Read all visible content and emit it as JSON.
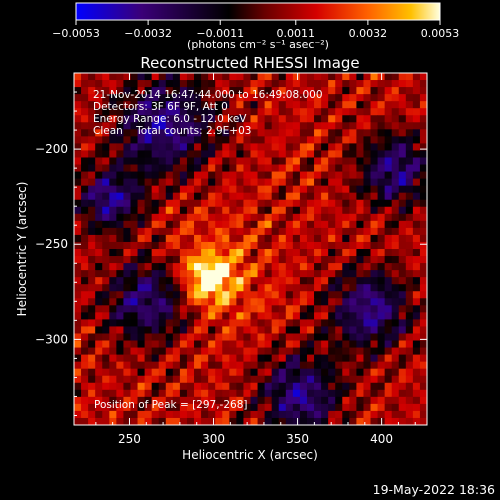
{
  "chart_data": {
    "type": "heatmap",
    "title": "Reconstructed RHESSI Image",
    "xlabel": "Heliocentric X (arcsec)",
    "ylabel": "Heliocentric Y (arcsec)",
    "xlim": [
      217,
      427
    ],
    "ylim": [
      -345,
      -160
    ],
    "x_ticks": [
      250,
      300,
      350,
      400
    ],
    "y_ticks": [
      -200,
      -250,
      -300
    ],
    "x_tick_labels": [
      "250",
      "300",
      "350",
      "400"
    ],
    "y_tick_labels": [
      "−200",
      "−250",
      "−300"
    ],
    "colorbar": {
      "min": -0.0053,
      "max": 0.0053,
      "tick_values": [
        -0.0053,
        -0.0032,
        -0.0011,
        0.0011,
        0.0032,
        0.0053
      ],
      "tick_labels": [
        "−0.0053",
        "−0.0032",
        "−0.0011",
        "0.0011",
        "0.0032",
        "0.0053"
      ],
      "units": "(photons cm⁻² s⁻¹ asec⁻²)",
      "colors": [
        "#0000ff",
        "#3a0078",
        "#000000",
        "#8a0000",
        "#d40000",
        "#ff6000",
        "#ffc000",
        "#ffffe0"
      ]
    },
    "annotations": {
      "time": "21-Nov-2014 16:47:44.000 to 16:49:08.000",
      "detectors": "Detectors: 3F 6F 9F, Att 0",
      "energy": "Energy Range: 6.0 - 12.0 keV",
      "clean": "Clean    Total counts: 2.9E+03",
      "peak": "Position of Peak = [297,-268]"
    },
    "peak": {
      "x": 297,
      "y": -268
    }
  },
  "footer": {
    "date": "19-May-2022 18:36"
  }
}
